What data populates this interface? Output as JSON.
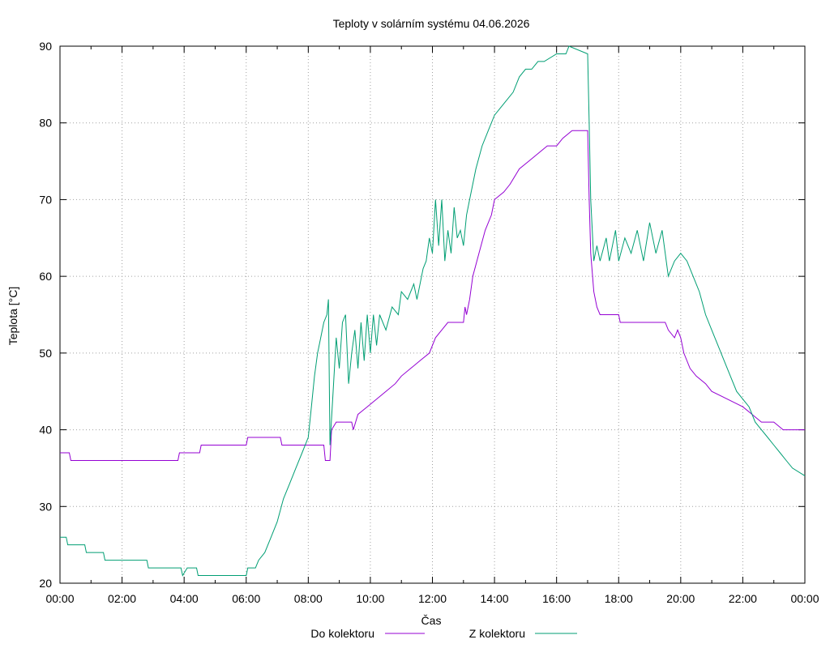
{
  "chart_data": {
    "type": "line",
    "title": "Teploty v solárním systému 04.06.2026",
    "xlabel": "Čas",
    "ylabel": "Teplota [°C]",
    "xlim": [
      0,
      24
    ],
    "ylim": [
      20,
      90
    ],
    "grid": true,
    "legend_position": "bottom",
    "x_ticks": [
      "00:00",
      "02:00",
      "04:00",
      "06:00",
      "08:00",
      "10:00",
      "12:00",
      "14:00",
      "16:00",
      "18:00",
      "20:00",
      "22:00",
      "00:00"
    ],
    "y_ticks": [
      20,
      30,
      40,
      50,
      60,
      70,
      80,
      90
    ],
    "series": [
      {
        "name": "Do kolektoru",
        "color": "#9400d3",
        "points": [
          [
            0.0,
            37
          ],
          [
            0.3,
            37
          ],
          [
            0.35,
            36
          ],
          [
            3.8,
            36
          ],
          [
            3.85,
            37
          ],
          [
            4.5,
            37
          ],
          [
            4.55,
            38
          ],
          [
            6.0,
            38
          ],
          [
            6.05,
            39
          ],
          [
            7.1,
            39
          ],
          [
            7.15,
            38
          ],
          [
            7.5,
            38
          ],
          [
            8.5,
            38
          ],
          [
            8.55,
            36
          ],
          [
            8.7,
            36
          ],
          [
            8.75,
            40
          ],
          [
            8.9,
            41
          ],
          [
            9.4,
            41
          ],
          [
            9.45,
            40
          ],
          [
            9.6,
            42
          ],
          [
            9.9,
            43
          ],
          [
            10.2,
            44
          ],
          [
            10.5,
            45
          ],
          [
            10.8,
            46
          ],
          [
            11.0,
            47
          ],
          [
            11.3,
            48
          ],
          [
            11.6,
            49
          ],
          [
            11.9,
            50
          ],
          [
            12.1,
            52
          ],
          [
            12.3,
            53
          ],
          [
            12.5,
            54
          ],
          [
            13.0,
            54
          ],
          [
            13.05,
            56
          ],
          [
            13.1,
            55
          ],
          [
            13.2,
            57
          ],
          [
            13.3,
            60
          ],
          [
            13.5,
            63
          ],
          [
            13.7,
            66
          ],
          [
            13.9,
            68
          ],
          [
            14.0,
            70
          ],
          [
            14.3,
            71
          ],
          [
            14.5,
            72
          ],
          [
            14.8,
            74
          ],
          [
            15.1,
            75
          ],
          [
            15.4,
            76
          ],
          [
            15.7,
            77
          ],
          [
            16.0,
            77
          ],
          [
            16.2,
            78
          ],
          [
            16.5,
            79
          ],
          [
            17.0,
            79
          ],
          [
            17.05,
            70
          ],
          [
            17.1,
            63
          ],
          [
            17.2,
            58
          ],
          [
            17.3,
            56
          ],
          [
            17.4,
            55
          ],
          [
            18.0,
            55
          ],
          [
            18.05,
            54
          ],
          [
            19.5,
            54
          ],
          [
            19.6,
            53
          ],
          [
            19.8,
            52
          ],
          [
            19.9,
            53
          ],
          [
            20.0,
            52
          ],
          [
            20.1,
            50
          ],
          [
            20.3,
            48
          ],
          [
            20.5,
            47
          ],
          [
            20.8,
            46
          ],
          [
            21.0,
            45
          ],
          [
            21.5,
            44
          ],
          [
            22.0,
            43
          ],
          [
            22.3,
            42
          ],
          [
            22.6,
            41
          ],
          [
            23.0,
            41
          ],
          [
            23.3,
            40
          ],
          [
            24.0,
            40
          ]
        ]
      },
      {
        "name": "Z kolektoru",
        "color": "#009e73",
        "points": [
          [
            0.0,
            26
          ],
          [
            0.2,
            26
          ],
          [
            0.25,
            25
          ],
          [
            0.8,
            25
          ],
          [
            0.85,
            24
          ],
          [
            1.4,
            24
          ],
          [
            1.45,
            23
          ],
          [
            2.8,
            23
          ],
          [
            2.85,
            22
          ],
          [
            3.9,
            22
          ],
          [
            3.95,
            21
          ],
          [
            4.1,
            22
          ],
          [
            4.4,
            22
          ],
          [
            4.45,
            21
          ],
          [
            5.8,
            21
          ],
          [
            6.0,
            21
          ],
          [
            6.05,
            22
          ],
          [
            6.3,
            22
          ],
          [
            6.4,
            23
          ],
          [
            6.6,
            24
          ],
          [
            6.8,
            26
          ],
          [
            7.0,
            28
          ],
          [
            7.2,
            31
          ],
          [
            7.4,
            33
          ],
          [
            7.6,
            35
          ],
          [
            7.8,
            37
          ],
          [
            8.0,
            39
          ],
          [
            8.1,
            43
          ],
          [
            8.2,
            47
          ],
          [
            8.3,
            50
          ],
          [
            8.4,
            52
          ],
          [
            8.5,
            54
          ],
          [
            8.6,
            55
          ],
          [
            8.65,
            57
          ],
          [
            8.7,
            38
          ],
          [
            8.8,
            45
          ],
          [
            8.9,
            52
          ],
          [
            9.0,
            48
          ],
          [
            9.1,
            54
          ],
          [
            9.2,
            55
          ],
          [
            9.3,
            46
          ],
          [
            9.4,
            50
          ],
          [
            9.5,
            53
          ],
          [
            9.6,
            48
          ],
          [
            9.7,
            54
          ],
          [
            9.8,
            49
          ],
          [
            9.9,
            55
          ],
          [
            10.0,
            50
          ],
          [
            10.1,
            55
          ],
          [
            10.2,
            51
          ],
          [
            10.3,
            55
          ],
          [
            10.5,
            53
          ],
          [
            10.7,
            56
          ],
          [
            10.9,
            55
          ],
          [
            11.0,
            58
          ],
          [
            11.2,
            57
          ],
          [
            11.4,
            59
          ],
          [
            11.5,
            57
          ],
          [
            11.7,
            61
          ],
          [
            11.8,
            62
          ],
          [
            11.9,
            65
          ],
          [
            12.0,
            63
          ],
          [
            12.1,
            70
          ],
          [
            12.2,
            64
          ],
          [
            12.3,
            70
          ],
          [
            12.4,
            62
          ],
          [
            12.5,
            66
          ],
          [
            12.6,
            63
          ],
          [
            12.7,
            69
          ],
          [
            12.8,
            65
          ],
          [
            12.9,
            66
          ],
          [
            13.0,
            64
          ],
          [
            13.1,
            68
          ],
          [
            13.2,
            70
          ],
          [
            13.4,
            74
          ],
          [
            13.6,
            77
          ],
          [
            13.8,
            79
          ],
          [
            14.0,
            81
          ],
          [
            14.2,
            82
          ],
          [
            14.4,
            83
          ],
          [
            14.6,
            84
          ],
          [
            14.8,
            86
          ],
          [
            15.0,
            87
          ],
          [
            15.2,
            87
          ],
          [
            15.4,
            88
          ],
          [
            15.6,
            88
          ],
          [
            16.0,
            89
          ],
          [
            16.3,
            89
          ],
          [
            16.4,
            90
          ],
          [
            17.0,
            89
          ],
          [
            17.05,
            80
          ],
          [
            17.1,
            70
          ],
          [
            17.15,
            66
          ],
          [
            17.2,
            62
          ],
          [
            17.3,
            64
          ],
          [
            17.4,
            62
          ],
          [
            17.6,
            65
          ],
          [
            17.7,
            62
          ],
          [
            17.9,
            66
          ],
          [
            18.0,
            62
          ],
          [
            18.2,
            65
          ],
          [
            18.4,
            63
          ],
          [
            18.6,
            66
          ],
          [
            18.8,
            62
          ],
          [
            19.0,
            67
          ],
          [
            19.2,
            63
          ],
          [
            19.4,
            66
          ],
          [
            19.6,
            60
          ],
          [
            19.8,
            62
          ],
          [
            20.0,
            63
          ],
          [
            20.2,
            62
          ],
          [
            20.4,
            60
          ],
          [
            20.6,
            58
          ],
          [
            20.8,
            55
          ],
          [
            21.0,
            53
          ],
          [
            21.2,
            51
          ],
          [
            21.4,
            49
          ],
          [
            21.6,
            47
          ],
          [
            21.8,
            45
          ],
          [
            22.0,
            44
          ],
          [
            22.2,
            43
          ],
          [
            22.4,
            41
          ],
          [
            22.6,
            40
          ],
          [
            22.8,
            39
          ],
          [
            23.0,
            38
          ],
          [
            23.2,
            37
          ],
          [
            23.4,
            36
          ],
          [
            23.6,
            35
          ],
          [
            24.0,
            34
          ]
        ]
      }
    ]
  }
}
